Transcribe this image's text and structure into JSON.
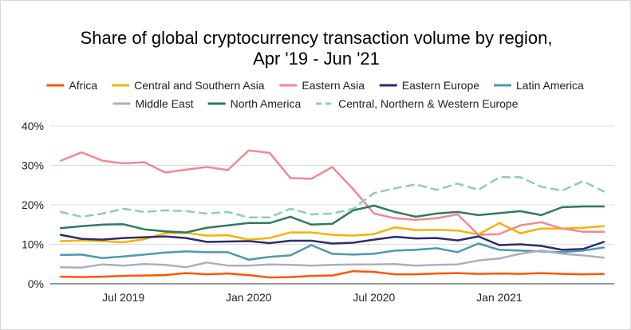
{
  "chart_data": {
    "type": "line",
    "title_lines": [
      "Share of global cryptocurrency transaction volume by region,",
      "Apr '19 - Jun '21"
    ],
    "xlabel": "",
    "ylabel": "",
    "ylim": [
      0,
      40
    ],
    "yticks": [
      0,
      10,
      20,
      30,
      40
    ],
    "ytick_labels": [
      "0%",
      "10%",
      "20%",
      "30%",
      "40%"
    ],
    "x_count": 27,
    "xtick_positions": [
      3,
      9,
      15,
      21
    ],
    "xtick_labels": [
      "Jul 2019",
      "Jan 2020",
      "Jul 2020",
      "Jan 2021"
    ],
    "grid": true,
    "legend_position": "top",
    "series": [
      {
        "name": "Africa",
        "color": "#ff5500",
        "dashed": false,
        "values": [
          1.8,
          1.7,
          1.8,
          2.0,
          2.1,
          2.2,
          2.7,
          2.4,
          2.6,
          2.2,
          1.6,
          1.7,
          2.0,
          2.1,
          3.2,
          3.0,
          2.4,
          2.4,
          2.6,
          2.7,
          2.5,
          2.6,
          2.5,
          2.7,
          2.5,
          2.4,
          2.5
        ]
      },
      {
        "name": "Central and Southern Asia",
        "color": "#f4b400",
        "dashed": false,
        "values": [
          10.8,
          11.0,
          10.8,
          10.5,
          11.3,
          12.8,
          12.9,
          12.2,
          12.3,
          11.2,
          11.6,
          13.0,
          13.0,
          12.4,
          12.2,
          12.6,
          14.3,
          13.6,
          13.7,
          13.5,
          12.5,
          15.4,
          12.8,
          14.0,
          14.0,
          14.2,
          14.6
        ]
      },
      {
        "name": "Eastern Asia",
        "color": "#f4888e",
        "dashed": false,
        "values": [
          31.2,
          33.3,
          31.2,
          30.5,
          30.8,
          28.2,
          28.9,
          29.6,
          28.8,
          33.8,
          33.2,
          26.8,
          26.6,
          29.6,
          24.0,
          17.8,
          16.6,
          16.2,
          16.6,
          17.6,
          12.4,
          12.6,
          14.8,
          15.6,
          14.0,
          13.2,
          13.2
        ]
      },
      {
        "name": "Eastern Europe",
        "color": "#2b2d6e",
        "dashed": false,
        "values": [
          12.4,
          11.4,
          11.2,
          11.6,
          11.8,
          12.0,
          11.6,
          10.6,
          10.7,
          10.8,
          10.3,
          10.9,
          10.9,
          10.2,
          10.4,
          11.2,
          11.9,
          11.5,
          11.6,
          11.0,
          12.0,
          9.8,
          10.0,
          9.6,
          8.6,
          8.8,
          10.6
        ]
      },
      {
        "name": "Latin America",
        "color": "#4a9aaf",
        "dashed": false,
        "values": [
          7.3,
          7.4,
          6.5,
          6.9,
          7.4,
          7.9,
          8.2,
          8.0,
          8.0,
          6.1,
          6.8,
          7.2,
          9.8,
          7.6,
          7.4,
          7.6,
          8.4,
          8.6,
          9.0,
          8.0,
          10.2,
          8.6,
          8.4,
          8.2,
          8.0,
          8.4,
          9.2
        ]
      },
      {
        "name": "Middle East",
        "color": "#aab0bb",
        "dashed": false,
        "values": [
          4.2,
          4.1,
          4.9,
          4.6,
          5.0,
          4.8,
          4.2,
          5.4,
          4.6,
          4.6,
          4.9,
          4.8,
          4.6,
          4.8,
          4.9,
          4.9,
          5.0,
          4.6,
          4.8,
          4.9,
          5.9,
          6.4,
          7.6,
          8.4,
          7.6,
          7.2,
          6.6
        ]
      },
      {
        "name": "North America",
        "color": "#2e7a62",
        "dashed": false,
        "values": [
          14.1,
          14.6,
          15.0,
          15.1,
          13.8,
          13.3,
          13.0,
          14.2,
          14.8,
          15.4,
          15.4,
          17.0,
          15.0,
          15.2,
          18.6,
          19.8,
          18.2,
          17.0,
          17.8,
          18.2,
          17.4,
          17.9,
          18.4,
          17.4,
          19.4,
          19.6,
          19.6
        ]
      },
      {
        "name": "Central, Northern & Western Europe",
        "color": "#88cfb5",
        "dashed": true,
        "values": [
          18.2,
          17.0,
          17.8,
          19.0,
          18.2,
          18.6,
          18.4,
          17.8,
          18.2,
          16.8,
          16.8,
          19.0,
          17.6,
          17.8,
          19.0,
          23.0,
          24.2,
          25.2,
          23.8,
          25.4,
          23.8,
          27.0,
          27.0,
          24.6,
          23.6,
          26.0,
          23.4
        ]
      }
    ]
  }
}
